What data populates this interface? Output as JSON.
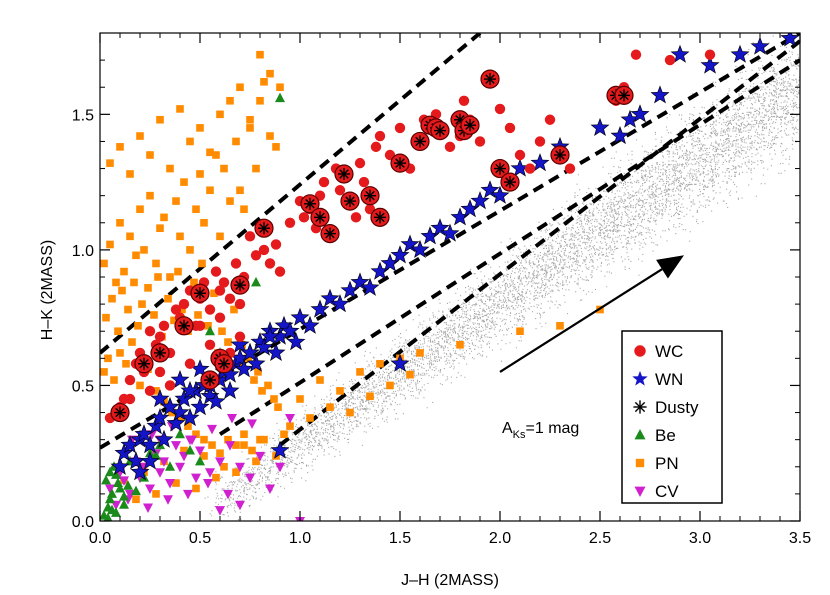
{
  "chart_data": {
    "type": "scatter",
    "xlabel": "J–H (2MASS)",
    "ylabel": "H–K (2MASS)",
    "xlim": [
      0.0,
      3.5
    ],
    "ylim": [
      0.0,
      1.8
    ],
    "x_ticks": [
      0.0,
      0.5,
      1.0,
      1.5,
      2.0,
      2.5,
      3.0,
      3.5
    ],
    "x_tick_labels": [
      "0.0",
      "0.5",
      "1.0",
      "1.5",
      "2.0",
      "2.5",
      "3.0",
      "3.5"
    ],
    "y_ticks": [
      0.0,
      0.5,
      1.0,
      1.5
    ],
    "y_tick_labels": [
      "0.0",
      "0.5",
      "1.0",
      "1.5"
    ],
    "grid": false,
    "legend_position": "lower-right",
    "annotation": {
      "text_main": "A",
      "text_sub": "Ks",
      "text_rest": "=1 mag",
      "arrow_from": [
        2.0,
        0.55
      ],
      "arrow_to": [
        2.92,
        0.98
      ]
    },
    "dashed_lines": [
      {
        "x": [
          0.0,
          1.9
        ],
        "y": [
          0.62,
          1.8
        ]
      },
      {
        "x": [
          0.0,
          3.5
        ],
        "y": [
          0.27,
          1.8
        ]
      },
      {
        "x": [
          0.6,
          3.5
        ],
        "y": [
          0.32,
          1.7
        ]
      },
      {
        "x": [
          0.9,
          3.5
        ],
        "y": [
          0.28,
          1.77
        ]
      }
    ],
    "series": [
      {
        "name": "WC",
        "marker": "circle",
        "color": "#e41a1c",
        "x": [
          0.05,
          0.1,
          0.12,
          0.15,
          0.18,
          0.2,
          0.22,
          0.25,
          0.28,
          0.3,
          0.32,
          0.35,
          0.38,
          0.4,
          0.42,
          0.45,
          0.48,
          0.5,
          0.52,
          0.55,
          0.58,
          0.6,
          0.62,
          0.65,
          0.68,
          0.7,
          0.72,
          0.75,
          0.78,
          0.8,
          0.82,
          0.85,
          0.88,
          0.9,
          0.95,
          1.0,
          1.02,
          1.05,
          1.08,
          1.1,
          1.12,
          1.15,
          1.18,
          1.2,
          1.22,
          1.25,
          1.28,
          1.3,
          1.32,
          1.35,
          1.38,
          1.4,
          1.45,
          1.5,
          1.55,
          1.6,
          1.62,
          1.65,
          1.68,
          1.7,
          1.75,
          1.8,
          1.82,
          1.85,
          1.9,
          1.95,
          2.0,
          2.05,
          2.1,
          2.15,
          2.2,
          2.25,
          2.3,
          2.35,
          2.58,
          2.6,
          2.62,
          2.68,
          2.85,
          3.05,
          0.3,
          0.25,
          0.5,
          0.6,
          0.65,
          0.7,
          0.45,
          0.55,
          0.35,
          0.15
        ],
        "y": [
          0.38,
          0.42,
          0.45,
          0.52,
          0.58,
          0.62,
          0.55,
          0.7,
          0.65,
          0.68,
          0.72,
          0.62,
          0.78,
          0.75,
          0.8,
          0.85,
          0.72,
          0.82,
          0.88,
          0.78,
          0.92,
          0.85,
          0.88,
          0.82,
          0.95,
          0.8,
          0.9,
          1.05,
          0.98,
          1.08,
          1.0,
          0.95,
          1.02,
          0.92,
          1.1,
          1.18,
          1.12,
          1.15,
          1.08,
          1.2,
          1.25,
          1.05,
          1.3,
          1.22,
          1.28,
          1.18,
          1.12,
          1.32,
          1.25,
          1.15,
          1.38,
          1.42,
          1.35,
          1.45,
          1.3,
          1.4,
          1.48,
          1.46,
          1.5,
          1.45,
          1.38,
          1.42,
          1.55,
          1.48,
          1.4,
          1.62,
          1.52,
          1.45,
          1.35,
          1.3,
          1.4,
          1.48,
          1.35,
          1.3,
          1.55,
          1.58,
          1.6,
          1.72,
          1.7,
          1.72,
          0.55,
          0.48,
          0.72,
          0.75,
          0.62,
          0.68,
          0.58,
          0.65,
          0.5,
          0.45
        ]
      },
      {
        "name": "WN",
        "marker": "star",
        "color": "#1515c8",
        "x": [
          0.1,
          0.12,
          0.15,
          0.18,
          0.2,
          0.22,
          0.25,
          0.28,
          0.3,
          0.32,
          0.35,
          0.38,
          0.4,
          0.42,
          0.45,
          0.48,
          0.5,
          0.52,
          0.55,
          0.58,
          0.6,
          0.62,
          0.65,
          0.68,
          0.7,
          0.72,
          0.75,
          0.78,
          0.8,
          0.82,
          0.85,
          0.88,
          0.9,
          0.92,
          0.95,
          0.98,
          1.0,
          1.05,
          1.1,
          1.15,
          1.2,
          1.25,
          1.3,
          1.35,
          1.4,
          1.45,
          1.5,
          1.55,
          1.6,
          1.65,
          1.7,
          1.75,
          1.8,
          1.85,
          1.9,
          1.95,
          2.0,
          2.05,
          2.1,
          2.2,
          2.3,
          2.5,
          2.6,
          2.65,
          2.7,
          2.8,
          2.9,
          3.05,
          3.2,
          3.3,
          3.45,
          0.3,
          0.4,
          0.5,
          0.6,
          0.7,
          0.35,
          0.45,
          0.55,
          0.65,
          0.75,
          0.85,
          1.5,
          0.9,
          0.2,
          0.25
        ],
        "y": [
          0.2,
          0.25,
          0.28,
          0.22,
          0.3,
          0.32,
          0.28,
          0.35,
          0.38,
          0.3,
          0.42,
          0.36,
          0.4,
          0.45,
          0.38,
          0.48,
          0.42,
          0.5,
          0.46,
          0.44,
          0.52,
          0.55,
          0.48,
          0.58,
          0.6,
          0.56,
          0.62,
          0.58,
          0.66,
          0.64,
          0.7,
          0.62,
          0.68,
          0.72,
          0.7,
          0.66,
          0.75,
          0.72,
          0.78,
          0.82,
          0.8,
          0.85,
          0.88,
          0.86,
          0.92,
          0.95,
          0.98,
          1.02,
          1.0,
          1.05,
          1.08,
          1.06,
          1.12,
          1.15,
          1.18,
          1.22,
          1.2,
          1.25,
          1.3,
          1.32,
          1.38,
          1.45,
          1.42,
          1.48,
          1.5,
          1.57,
          1.72,
          1.68,
          1.72,
          1.75,
          1.78,
          0.45,
          0.52,
          0.56,
          0.6,
          0.65,
          0.42,
          0.48,
          0.5,
          0.54,
          0.62,
          0.68,
          0.58,
          0.26,
          0.18,
          0.22
        ]
      },
      {
        "name": "Dusty",
        "marker": "asterisk",
        "color": "#000000",
        "x": [
          0.1,
          0.22,
          0.3,
          0.42,
          0.5,
          0.55,
          0.6,
          0.62,
          0.7,
          0.82,
          1.05,
          1.1,
          1.15,
          1.22,
          1.25,
          1.35,
          1.4,
          1.5,
          1.6,
          1.65,
          1.68,
          1.7,
          1.8,
          1.82,
          1.85,
          1.95,
          2.0,
          2.05,
          2.3,
          2.58,
          2.62
        ],
        "y": [
          0.4,
          0.58,
          0.62,
          0.72,
          0.84,
          0.52,
          0.6,
          0.58,
          0.87,
          1.08,
          1.17,
          1.12,
          1.06,
          1.28,
          1.18,
          1.2,
          1.12,
          1.32,
          1.4,
          1.46,
          1.45,
          1.44,
          1.48,
          1.44,
          1.46,
          1.63,
          1.3,
          1.25,
          1.35,
          1.57,
          1.57
        ]
      },
      {
        "name": "Be",
        "marker": "triangle",
        "color": "#1a8a1a",
        "x": [
          0.02,
          0.04,
          0.05,
          0.06,
          0.08,
          0.1,
          0.12,
          0.03,
          0.05,
          0.07,
          0.09,
          0.04,
          0.06,
          0.15,
          0.2,
          0.25,
          0.3,
          0.35,
          0.4,
          0.45,
          0.5,
          0.12,
          0.18,
          0.22,
          0.28,
          0.9,
          0.78,
          0.55,
          0.6,
          0.08,
          0.14
        ],
        "y": [
          0.02,
          0.05,
          0.08,
          0.1,
          0.03,
          0.12,
          0.06,
          0.15,
          0.18,
          0.2,
          0.14,
          0.01,
          0.04,
          0.22,
          0.18,
          0.25,
          0.28,
          0.2,
          0.32,
          0.26,
          0.22,
          0.09,
          0.11,
          0.16,
          0.24,
          1.56,
          0.88,
          0.7,
          0.62,
          0.17,
          0.13
        ]
      },
      {
        "name": "PN",
        "marker": "square",
        "color": "#ff8c00",
        "x": [
          0.02,
          0.05,
          0.08,
          0.1,
          0.12,
          0.15,
          0.18,
          0.2,
          0.22,
          0.25,
          0.28,
          0.3,
          0.32,
          0.35,
          0.38,
          0.4,
          0.42,
          0.45,
          0.48,
          0.5,
          0.52,
          0.55,
          0.58,
          0.6,
          0.62,
          0.65,
          0.68,
          0.7,
          0.72,
          0.75,
          0.78,
          0.8,
          0.82,
          0.85,
          0.88,
          0.9,
          0.03,
          0.06,
          0.09,
          0.11,
          0.14,
          0.17,
          0.19,
          0.21,
          0.24,
          0.27,
          0.29,
          0.31,
          0.34,
          0.37,
          0.39,
          0.41,
          0.44,
          0.47,
          0.49,
          0.51,
          0.54,
          0.57,
          0.59,
          0.61,
          0.64,
          0.67,
          0.69,
          0.71,
          0.74,
          0.77,
          0.79,
          0.81,
          0.84,
          0.87,
          0.89,
          0.02,
          0.04,
          0.07,
          0.1,
          0.13,
          0.16,
          0.2,
          0.24,
          0.28,
          0.32,
          0.36,
          0.4,
          0.44,
          0.48,
          0.52,
          0.56,
          0.6,
          0.64,
          0.68,
          0.72,
          0.76,
          0.8,
          0.05,
          0.1,
          0.15,
          0.2,
          0.25,
          0.3,
          0.35,
          0.4,
          0.45,
          0.5,
          0.55,
          0.6,
          0.65,
          0.7,
          0.75,
          0.8,
          0.85,
          1.0,
          1.1,
          1.2,
          1.3,
          1.4,
          1.5,
          1.6,
          1.8,
          2.1,
          2.3,
          2.5,
          1.05,
          1.15,
          1.25,
          1.35,
          1.45,
          1.55,
          0.95,
          0.12,
          0.22,
          0.32,
          0.42,
          0.52,
          0.62,
          0.72,
          0.82,
          0.92,
          0.18,
          0.28,
          0.38,
          0.48,
          0.58,
          0.68,
          0.78,
          0.88
        ],
        "y": [
          0.95,
          1.02,
          0.88,
          1.1,
          0.92,
          1.05,
          0.98,
          1.15,
          1.0,
          1.2,
          0.95,
          1.08,
          1.12,
          0.9,
          1.18,
          1.05,
          1.25,
          1.0,
          1.15,
          1.28,
          1.1,
          1.22,
          1.35,
          1.05,
          1.3,
          1.18,
          1.4,
          1.22,
          1.15,
          1.45,
          1.3,
          1.55,
          1.62,
          1.42,
          1.38,
          1.6,
          0.75,
          0.82,
          0.7,
          0.85,
          0.78,
          0.88,
          0.72,
          0.8,
          0.86,
          0.76,
          0.9,
          0.68,
          0.82,
          0.74,
          0.92,
          0.78,
          0.7,
          0.88,
          0.76,
          0.95,
          0.72,
          0.84,
          0.62,
          0.7,
          0.66,
          0.78,
          0.58,
          0.65,
          0.6,
          0.52,
          0.55,
          0.48,
          0.5,
          0.45,
          0.42,
          0.55,
          0.6,
          0.52,
          0.62,
          0.58,
          0.66,
          0.5,
          0.56,
          0.48,
          0.44,
          0.4,
          0.38,
          0.35,
          0.32,
          0.3,
          0.28,
          0.25,
          0.3,
          0.28,
          0.32,
          0.26,
          0.3,
          1.32,
          1.38,
          1.28,
          1.42,
          1.35,
          1.48,
          1.3,
          1.52,
          1.4,
          1.45,
          1.36,
          1.5,
          1.55,
          1.6,
          1.48,
          1.72,
          1.65,
          0.45,
          0.52,
          0.48,
          0.55,
          0.58,
          0.6,
          0.62,
          0.65,
          0.7,
          0.72,
          0.78,
          0.38,
          0.42,
          0.4,
          0.46,
          0.5,
          0.54,
          0.35,
          0.15,
          0.18,
          0.22,
          0.26,
          0.24,
          0.2,
          0.28,
          0.3,
          0.32,
          0.08,
          0.1,
          0.14,
          0.12,
          0.16,
          0.18,
          0.22,
          0.24
        ]
      },
      {
        "name": "CV",
        "marker": "triangle-down",
        "color": "#d020d0",
        "x": [
          0.05,
          0.1,
          0.12,
          0.15,
          0.18,
          0.2,
          0.22,
          0.25,
          0.28,
          0.3,
          0.32,
          0.35,
          0.38,
          0.4,
          0.42,
          0.45,
          0.48,
          0.5,
          0.55,
          0.6,
          0.65,
          0.7,
          0.75,
          0.8,
          0.85,
          0.9,
          0.08,
          0.14,
          0.24,
          0.34,
          0.44,
          0.54,
          0.64,
          0.26,
          0.36,
          0.46,
          0.56,
          0.66,
          0.76,
          0.95,
          1.0,
          0.7,
          0.6,
          0.16,
          0.3
        ],
        "y": [
          0.12,
          0.18,
          0.15,
          0.1,
          0.22,
          0.16,
          0.2,
          0.12,
          0.25,
          0.18,
          0.22,
          0.14,
          0.28,
          0.2,
          0.24,
          0.3,
          0.16,
          0.26,
          0.18,
          0.22,
          0.28,
          0.2,
          0.16,
          0.24,
          0.12,
          0.2,
          0.06,
          0.08,
          0.05,
          0.08,
          0.1,
          0.14,
          0.1,
          0.32,
          0.35,
          0.3,
          0.34,
          0.38,
          0.36,
          0.38,
          0.0,
          0.06,
          0.04,
          0.3,
          0.3
        ]
      }
    ],
    "background": {
      "name": "field stars",
      "color": "#9a9a9a",
      "trend": {
        "x": [
          0.55,
          3.5
        ],
        "y": [
          0.05,
          1.6
        ]
      }
    }
  }
}
